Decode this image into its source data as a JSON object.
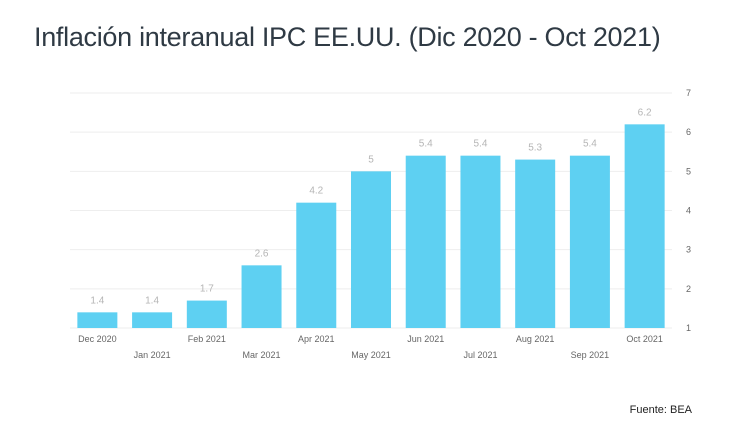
{
  "title": "Inflación interanual IPC EE.UU. (Dic 2020 - Oct 2021)",
  "source": "Fuente: BEA",
  "colors": {
    "bar": "#5ed0f2",
    "label": "#b5b5b5",
    "axis": "#666666",
    "grid": "#eeeeee"
  },
  "chart_data": {
    "type": "bar",
    "title": "Inflación interanual IPC EE.UU. (Dic 2020 - Oct 2021)",
    "categories": [
      "Dec 2020",
      "Jan 2021",
      "Feb 2021",
      "Mar 2021",
      "Apr 2021",
      "May 2021",
      "Jun 2021",
      "Jul 2021",
      "Aug 2021",
      "Sep 2021",
      "Oct 2021"
    ],
    "values": [
      1.4,
      1.4,
      1.7,
      2.6,
      4.2,
      5,
      5.4,
      5.4,
      5.3,
      5.4,
      6.2
    ],
    "data_labels": [
      "1.4",
      "1.4",
      "1.7",
      "2.6",
      "4.2",
      "5",
      "5.4",
      "5.4",
      "5.3",
      "5.4",
      "6.2"
    ],
    "ylim": [
      1,
      7
    ],
    "yticks": [
      "1",
      "2",
      "3",
      "4",
      "5",
      "6",
      "7"
    ],
    "y_axis_position": "right",
    "xlabel": "",
    "ylabel": ""
  }
}
